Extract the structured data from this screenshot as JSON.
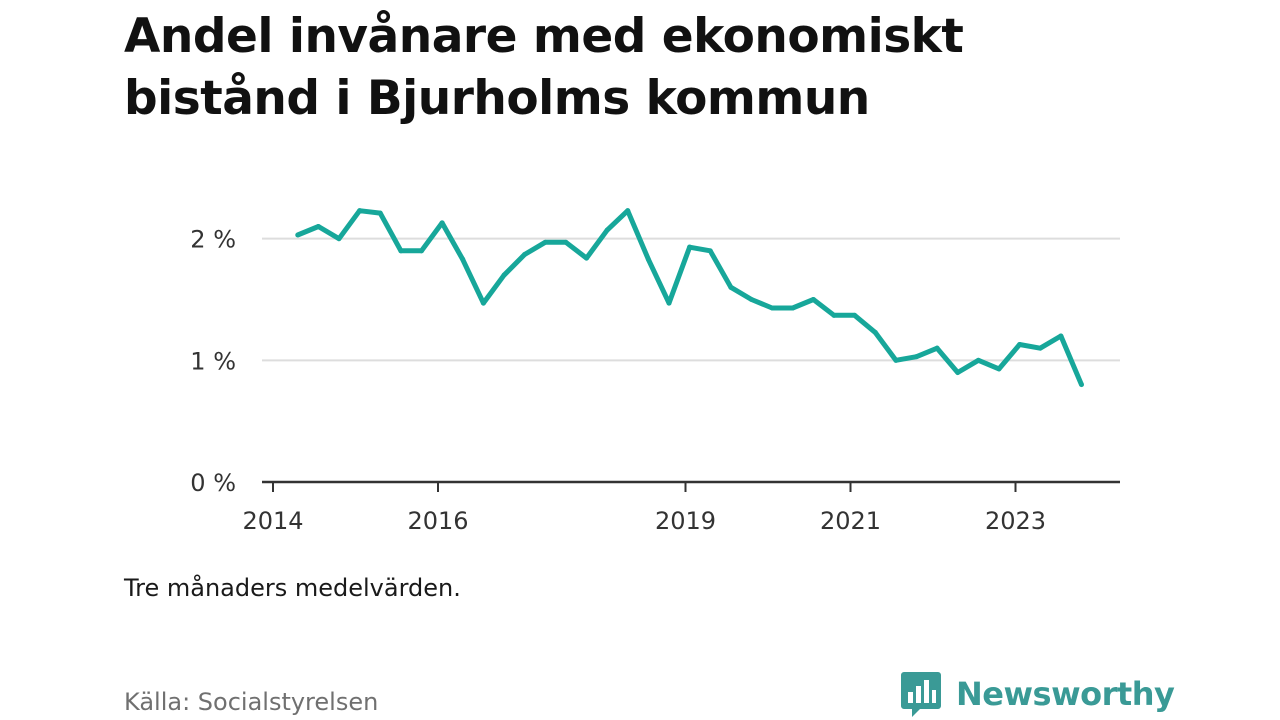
{
  "title": "Andel invånare med ekonomiskt bistånd i Bjurholms kommun",
  "note": "Tre månaders medelvärden.",
  "source": "Källa: Socialstyrelsen",
  "brand": {
    "name": "Newsworthy",
    "color": "#3a9a96",
    "icon": "bar-chart-speech-bubble-icon"
  },
  "colors": {
    "line": "#17a79a",
    "grid": "#dddddd",
    "axis": "#333333"
  },
  "chart_data": {
    "type": "line",
    "title": "Andel invånare med ekonomiskt bistånd i Bjurholms kommun",
    "xlabel": "",
    "ylabel": "",
    "x_ticks": [
      2014,
      2016,
      2019,
      2021,
      2023
    ],
    "x_range": [
      2014.0,
      2024.4
    ],
    "y_ticks": [
      0,
      1,
      2
    ],
    "y_tick_labels": [
      "0 %",
      "1 %",
      "2 %"
    ],
    "ylim": [
      0,
      2.4
    ],
    "grid": "horizontal",
    "legend": "none",
    "series": [
      {
        "x": [
          2014.3,
          2014.55,
          2014.8,
          2015.05,
          2015.3,
          2015.55,
          2015.8,
          2016.05,
          2016.3,
          2016.55,
          2016.8,
          2017.05,
          2017.3,
          2017.55,
          2017.8,
          2018.05,
          2018.3,
          2018.55,
          2018.8,
          2019.05,
          2019.3,
          2019.55,
          2019.8,
          2020.05,
          2020.3,
          2020.55,
          2020.8,
          2021.05,
          2021.3,
          2021.55,
          2021.8,
          2022.05,
          2022.3,
          2022.55,
          2022.8,
          2023.05,
          2023.3,
          2023.55,
          2023.8
        ],
        "y": [
          2.03,
          2.1,
          2.0,
          2.23,
          2.21,
          1.9,
          1.9,
          2.13,
          1.83,
          1.47,
          1.7,
          1.87,
          1.97,
          1.97,
          1.84,
          2.07,
          2.23,
          1.83,
          1.47,
          1.93,
          1.9,
          1.6,
          1.5,
          1.43,
          1.43,
          1.5,
          1.37,
          1.37,
          1.23,
          1.0,
          1.03,
          1.1,
          0.9,
          1.0,
          0.93,
          1.13,
          1.1,
          1.2,
          0.8
        ]
      }
    ]
  }
}
